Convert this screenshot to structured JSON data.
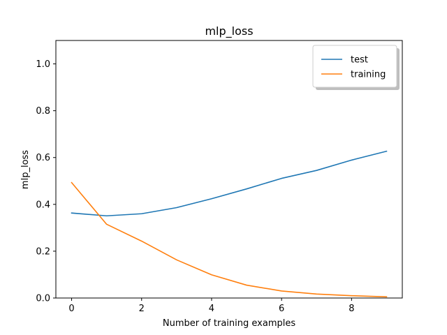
{
  "chart_data": {
    "type": "line",
    "title": "mlp_loss",
    "xlabel": "Number of training examples",
    "ylabel": "mlp_loss",
    "xlim": [
      -0.45,
      9.45
    ],
    "ylim": [
      0.0,
      1.1
    ],
    "xticks": [
      0,
      2,
      4,
      6,
      8
    ],
    "yticks": [
      0.0,
      0.2,
      0.4,
      0.6,
      0.8,
      1.0
    ],
    "xtick_labels": [
      "0",
      "2",
      "4",
      "6",
      "8"
    ],
    "ytick_labels": [
      "0.0",
      "0.2",
      "0.4",
      "0.6",
      "0.8",
      "1.0"
    ],
    "grid": false,
    "legend_position": "top-right",
    "x": [
      0,
      1,
      2,
      3,
      4,
      5,
      6,
      7,
      8,
      9
    ],
    "series": [
      {
        "name": "test",
        "color": "#1f77b4",
        "values": [
          0.363,
          0.351,
          0.36,
          0.386,
          0.424,
          0.466,
          0.511,
          0.545,
          0.589,
          0.627
        ]
      },
      {
        "name": "training",
        "color": "#ff7f0e",
        "values": [
          0.493,
          0.315,
          0.243,
          0.163,
          0.099,
          0.055,
          0.03,
          0.017,
          0.01,
          0.005
        ]
      }
    ]
  }
}
